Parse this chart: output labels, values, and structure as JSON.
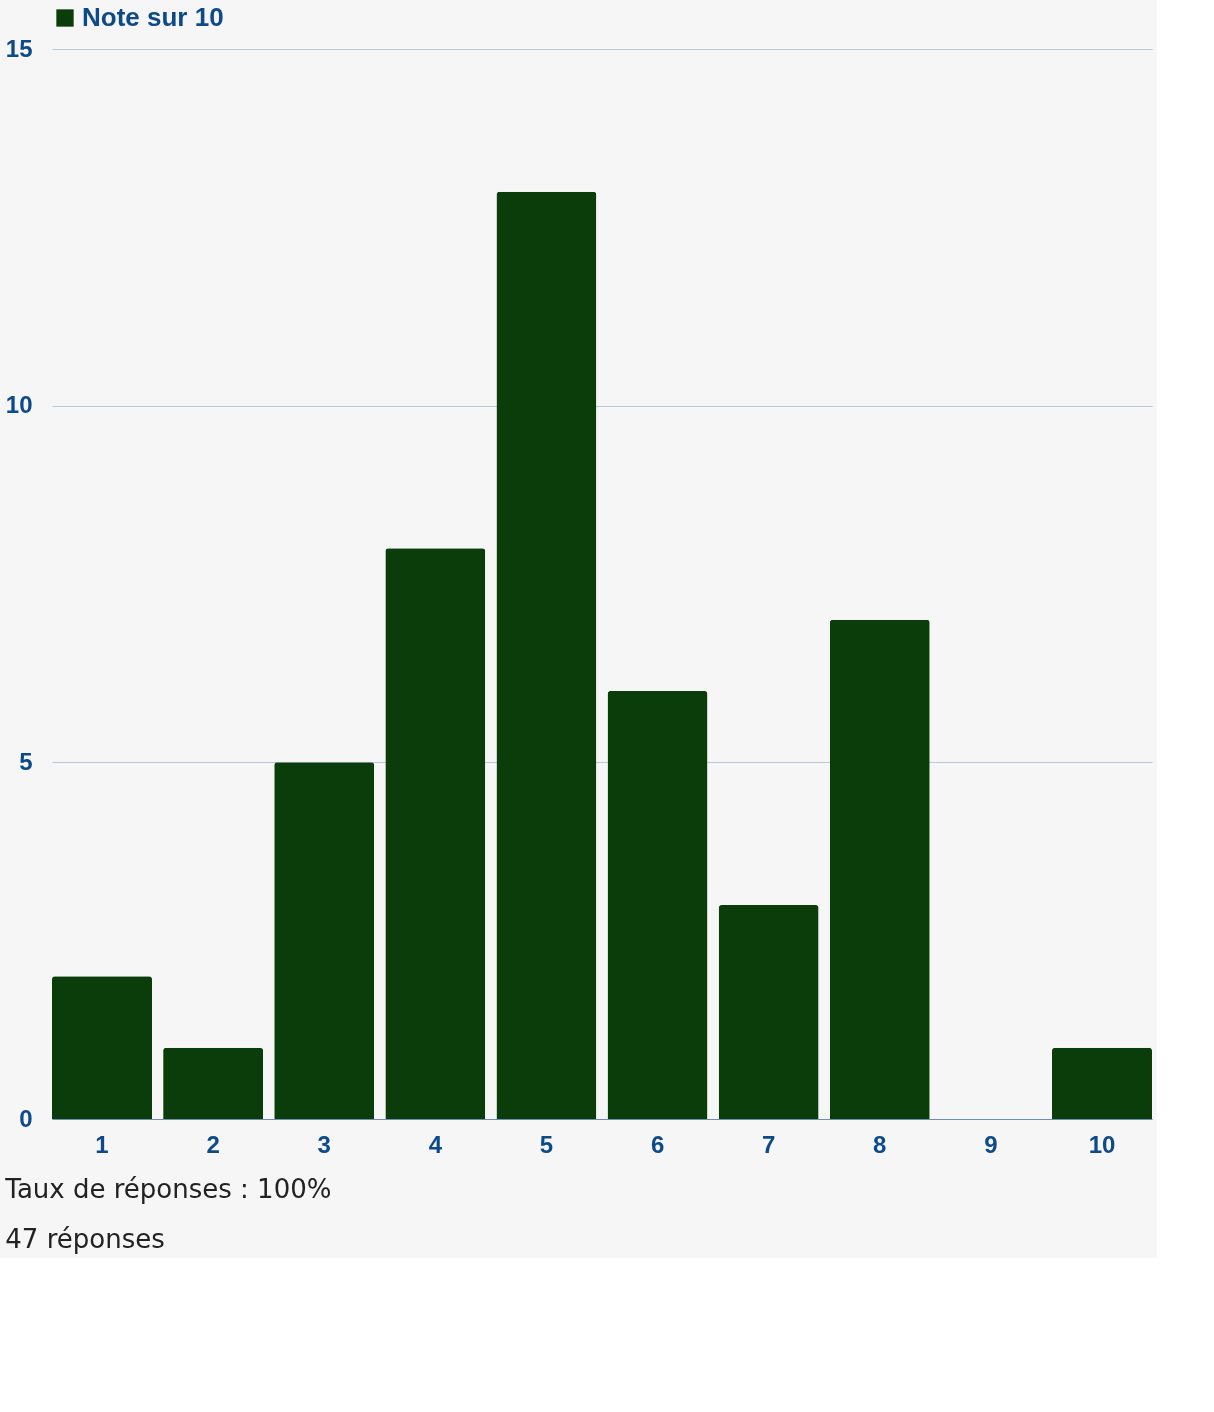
{
  "chart_data": {
    "type": "bar",
    "categories": [
      "1",
      "2",
      "3",
      "4",
      "5",
      "6",
      "7",
      "8",
      "9",
      "10"
    ],
    "series": [
      {
        "name": "Note sur 10",
        "color": "#0a3d0a",
        "values": [
          2,
          1,
          5,
          8,
          13,
          6,
          3,
          7,
          0,
          1
        ]
      }
    ],
    "ylim": [
      0,
      15
    ],
    "yticks": [
      0,
      5,
      10,
      15
    ],
    "grid": "y",
    "legend": "top",
    "annotations": [
      "Taux de réponses : 100%",
      "47 réponses"
    ]
  }
}
